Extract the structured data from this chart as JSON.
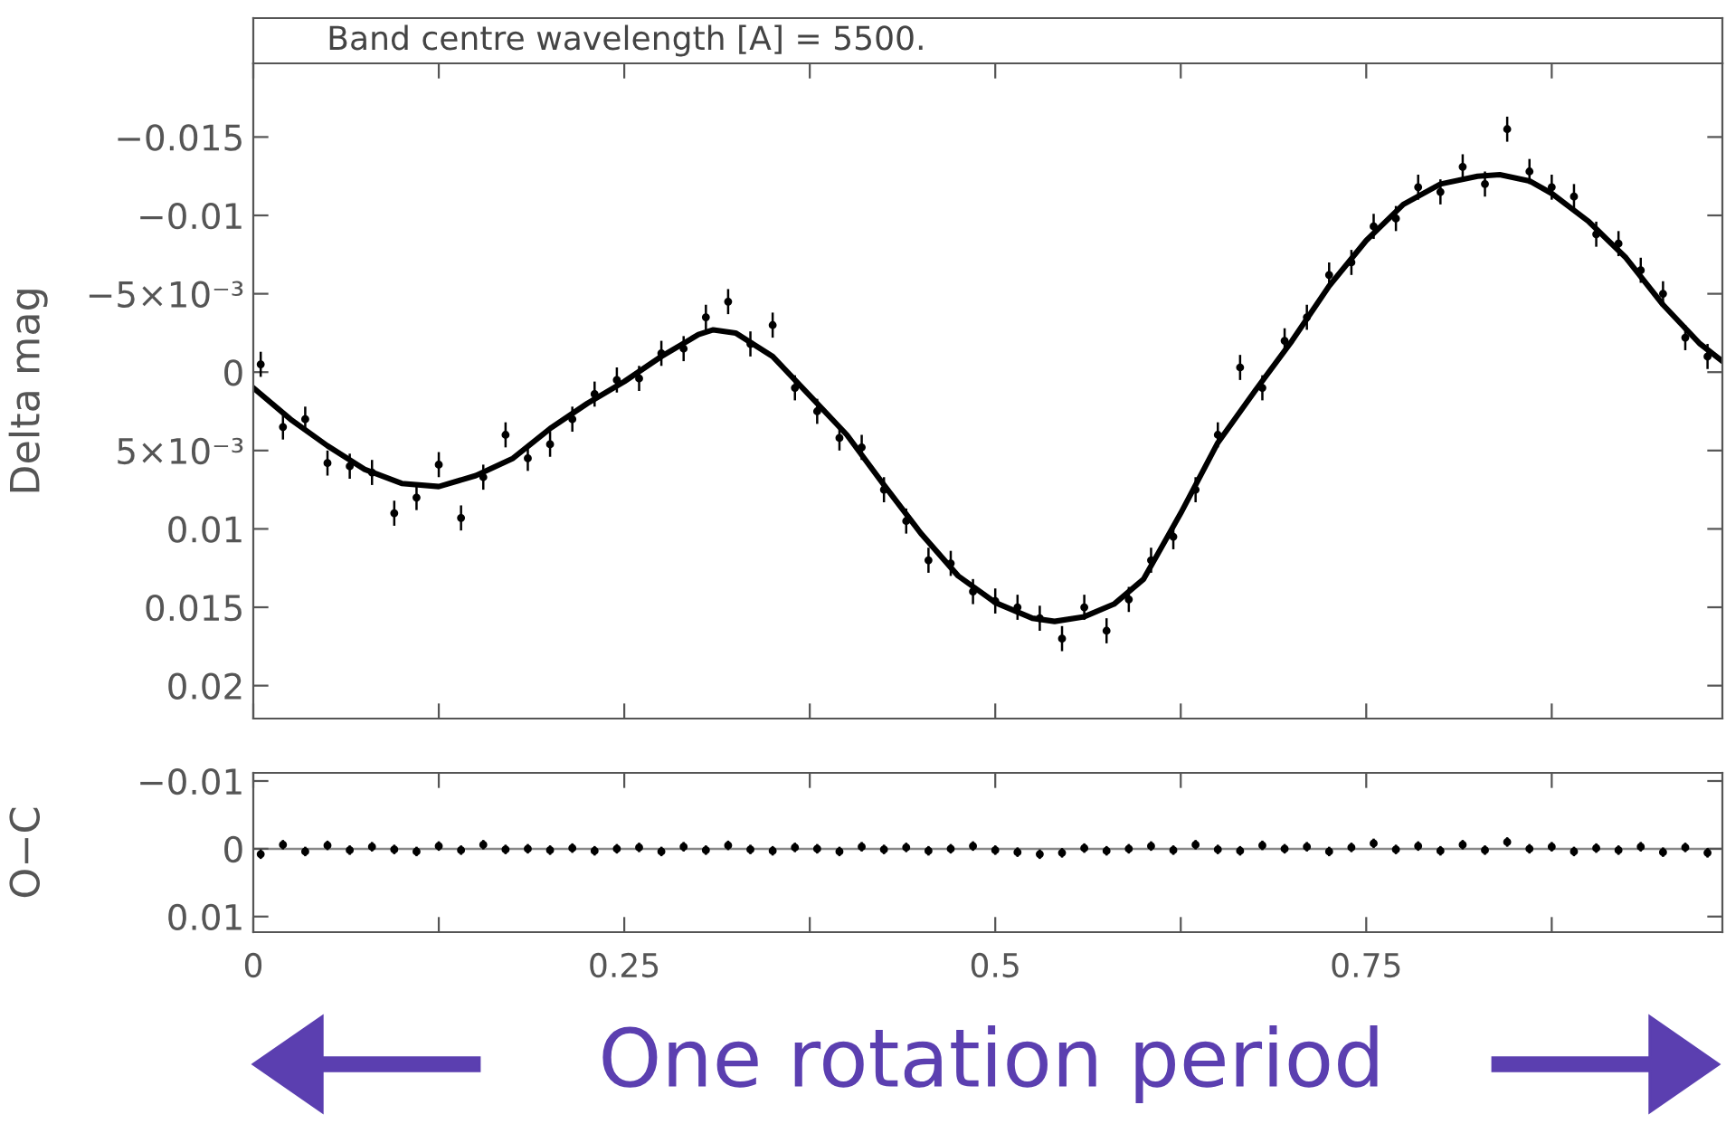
{
  "chart_data": [
    {
      "type": "scatter",
      "title": "Band centre wavelength [A] = 5500.",
      "ylabel": "Delta mag",
      "xlim": [
        0,
        0.99
      ],
      "xticks": [
        0,
        {
          "value": 0.125,
          "label": null
        },
        0.25,
        {
          "value": 0.375,
          "label": null
        },
        0.5,
        {
          "value": 0.625,
          "label": null
        },
        0.75,
        {
          "value": 0.875,
          "label": null
        }
      ],
      "ylim": [
        0.0221,
        -0.0197
      ],
      "yticks": [
        {
          "value": -0.015,
          "label": "−0.015"
        },
        {
          "value": -0.01,
          "label": "−0.01"
        },
        {
          "value": -0.005,
          "label": "−5×10⁻³"
        },
        0,
        {
          "value": 0.005,
          "label": "5×10⁻³"
        },
        0.01,
        0.015,
        0.02
      ],
      "tick_labels": "y",
      "grid": false,
      "annotations": [
        "One rotation period"
      ],
      "series": [
        {
          "type": "line",
          "color": "#000000",
          "marker": "none",
          "line_style": "solid",
          "x": [
            0.0,
            0.025,
            0.05,
            0.075,
            0.1,
            0.125,
            0.15,
            0.175,
            0.2,
            0.225,
            0.25,
            0.275,
            0.3,
            0.31,
            0.325,
            0.35,
            0.375,
            0.4,
            0.425,
            0.45,
            0.475,
            0.5,
            0.525,
            0.54,
            0.56,
            0.58,
            0.6,
            0.625,
            0.65,
            0.675,
            0.7,
            0.725,
            0.75,
            0.775,
            0.8,
            0.825,
            0.84,
            0.86,
            0.875,
            0.9,
            0.925,
            0.95,
            0.975,
            0.99
          ],
          "values": [
            0.001,
            0.003,
            0.0047,
            0.0062,
            0.0071,
            0.0073,
            0.0066,
            0.0055,
            0.0036,
            0.002,
            0.0006,
            -0.001,
            -0.0024,
            -0.0027,
            -0.0025,
            -0.001,
            0.0015,
            0.004,
            0.0072,
            0.0103,
            0.013,
            0.0147,
            0.0157,
            0.0159,
            0.0156,
            0.0148,
            0.0132,
            0.009,
            0.0045,
            0.0012,
            -0.002,
            -0.0055,
            -0.0084,
            -0.0107,
            -0.012,
            -0.0125,
            -0.0126,
            -0.0122,
            -0.0114,
            -0.0096,
            -0.0073,
            -0.0043,
            -0.0018,
            -0.0007
          ]
        },
        {
          "color": "#000000",
          "marker": "circle",
          "x": [
            0.005,
            0.02,
            0.035,
            0.05,
            0.065,
            0.08,
            0.095,
            0.11,
            0.125,
            0.14,
            0.155,
            0.17,
            0.185,
            0.2,
            0.215,
            0.23,
            0.245,
            0.26,
            0.275,
            0.29,
            0.305,
            0.32,
            0.335,
            0.35,
            0.365,
            0.38,
            0.395,
            0.41,
            0.425,
            0.44,
            0.455,
            0.47,
            0.485,
            0.5,
            0.515,
            0.53,
            0.545,
            0.56,
            0.575,
            0.59,
            0.605,
            0.62,
            0.635,
            0.65,
            0.665,
            0.68,
            0.695,
            0.71,
            0.725,
            0.74,
            0.755,
            0.77,
            0.785,
            0.8,
            0.815,
            0.83,
            0.845,
            0.86,
            0.875,
            0.89,
            0.905,
            0.92,
            0.935,
            0.95,
            0.965,
            0.98
          ],
          "values": [
            -0.0005,
            0.0035,
            0.003,
            0.0058,
            0.006,
            0.0064,
            0.009,
            0.008,
            0.0059,
            0.0093,
            0.0067,
            0.004,
            0.0055,
            0.0046,
            0.003,
            0.0014,
            0.0005,
            0.0004,
            -0.0012,
            -0.0015,
            -0.0035,
            -0.0045,
            -0.0018,
            -0.003,
            0.001,
            0.0025,
            0.0042,
            0.0048,
            0.0075,
            0.0095,
            0.012,
            0.0122,
            0.014,
            0.0146,
            0.015,
            0.0157,
            0.017,
            0.015,
            0.0165,
            0.0145,
            0.012,
            0.0105,
            0.0075,
            0.004,
            -0.0003,
            0.001,
            -0.002,
            -0.0035,
            -0.0062,
            -0.007,
            -0.0093,
            -0.0098,
            -0.0118,
            -0.0115,
            -0.0131,
            -0.012,
            -0.0155,
            -0.0128,
            -0.0118,
            -0.0112,
            -0.0088,
            -0.0082,
            -0.0065,
            -0.005,
            -0.0022,
            -0.001
          ],
          "errors": [
            0.0008,
            0.0008,
            0.0008,
            0.0008,
            0.0008,
            0.0008,
            0.0008,
            0.0008,
            0.0008,
            0.0008,
            0.0008,
            0.0008,
            0.0008,
            0.0008,
            0.0008,
            0.0008,
            0.0008,
            0.0008,
            0.0008,
            0.0008,
            0.0008,
            0.0008,
            0.0008,
            0.0008,
            0.0008,
            0.0008,
            0.0008,
            0.0008,
            0.0008,
            0.0008,
            0.0008,
            0.0008,
            0.0008,
            0.0008,
            0.0008,
            0.0008,
            0.0008,
            0.0008,
            0.0008,
            0.0008,
            0.0008,
            0.0008,
            0.0008,
            0.0008,
            0.0008,
            0.0008,
            0.0008,
            0.0008,
            0.0008,
            0.0008,
            0.0008,
            0.0008,
            0.0008,
            0.0008,
            0.0008,
            0.0008,
            0.0008,
            0.0008,
            0.0008,
            0.0008,
            0.0008,
            0.0008,
            0.0008,
            0.0008,
            0.0008,
            0.0008
          ]
        }
      ]
    },
    {
      "type": "scatter",
      "ylabel": "O−C",
      "xlim": [
        0,
        0.99
      ],
      "xticks": [
        0,
        {
          "value": 0.125,
          "label": null
        },
        0.25,
        {
          "value": 0.375,
          "label": null
        },
        0.5,
        {
          "value": 0.625,
          "label": null
        },
        0.75,
        {
          "value": 0.875,
          "label": null
        }
      ],
      "ylim": [
        0.0123,
        -0.0112
      ],
      "yticks": [
        {
          "value": -0.01,
          "label": "−0.01"
        },
        0,
        0.01
      ],
      "grid": false,
      "ref_lines": [
        {
          "axis": "y",
          "value": 0,
          "color": "#888888"
        }
      ],
      "series": [
        {
          "color": "#000000",
          "marker": "circle",
          "x": [
            0.005,
            0.02,
            0.035,
            0.05,
            0.065,
            0.08,
            0.095,
            0.11,
            0.125,
            0.14,
            0.155,
            0.17,
            0.185,
            0.2,
            0.215,
            0.23,
            0.245,
            0.26,
            0.275,
            0.29,
            0.305,
            0.32,
            0.335,
            0.35,
            0.365,
            0.38,
            0.395,
            0.41,
            0.425,
            0.44,
            0.455,
            0.47,
            0.485,
            0.5,
            0.515,
            0.53,
            0.545,
            0.56,
            0.575,
            0.59,
            0.605,
            0.62,
            0.635,
            0.65,
            0.665,
            0.68,
            0.695,
            0.71,
            0.725,
            0.74,
            0.755,
            0.77,
            0.785,
            0.8,
            0.815,
            0.83,
            0.845,
            0.86,
            0.875,
            0.89,
            0.905,
            0.92,
            0.935,
            0.95,
            0.965,
            0.98
          ],
          "values": [
            0.0008,
            -0.0006,
            0.0004,
            -0.0005,
            0.0002,
            -0.0003,
            0.0001,
            0.0004,
            -0.0004,
            0.0002,
            -0.0006,
            0.0001,
            0.0,
            0.0002,
            -0.0001,
            0.0003,
            0.0,
            -0.0002,
            0.0004,
            -0.0003,
            0.0002,
            -0.0005,
            0.0001,
            0.0003,
            -0.0002,
            0.0,
            0.0004,
            -0.0003,
            0.0001,
            -0.0002,
            0.0003,
            0.0,
            -0.0004,
            0.0002,
            0.0005,
            0.0008,
            0.0006,
            -0.0001,
            0.0003,
            0.0,
            -0.0004,
            0.0002,
            -0.0006,
            0.0001,
            0.0003,
            -0.0005,
            0.0,
            -0.0003,
            0.0004,
            -0.0002,
            -0.0008,
            0.0001,
            -0.0004,
            0.0003,
            -0.0006,
            0.0002,
            -0.001,
            0.0,
            -0.0003,
            0.0004,
            -0.0001,
            0.0002,
            -0.0003,
            0.0005,
            -0.0002,
            0.0006
          ],
          "errors": [
            0.0007,
            0.0007,
            0.0007,
            0.0007,
            0.0007,
            0.0007,
            0.0007,
            0.0007,
            0.0007,
            0.0007,
            0.0007,
            0.0007,
            0.0007,
            0.0007,
            0.0007,
            0.0007,
            0.0007,
            0.0007,
            0.0007,
            0.0007,
            0.0007,
            0.0007,
            0.0007,
            0.0007,
            0.0007,
            0.0007,
            0.0007,
            0.0007,
            0.0007,
            0.0007,
            0.0007,
            0.0007,
            0.0007,
            0.0007,
            0.0007,
            0.0007,
            0.0007,
            0.0007,
            0.0007,
            0.0007,
            0.0007,
            0.0007,
            0.0007,
            0.0007,
            0.0007,
            0.0007,
            0.0007,
            0.0007,
            0.0007,
            0.0007,
            0.0007,
            0.0007,
            0.0007,
            0.0007,
            0.0007,
            0.0007,
            0.0007,
            0.0007,
            0.0007,
            0.0007,
            0.0007,
            0.0007,
            0.0007,
            0.0007,
            0.0007,
            0.0007
          ]
        }
      ]
    }
  ]
}
